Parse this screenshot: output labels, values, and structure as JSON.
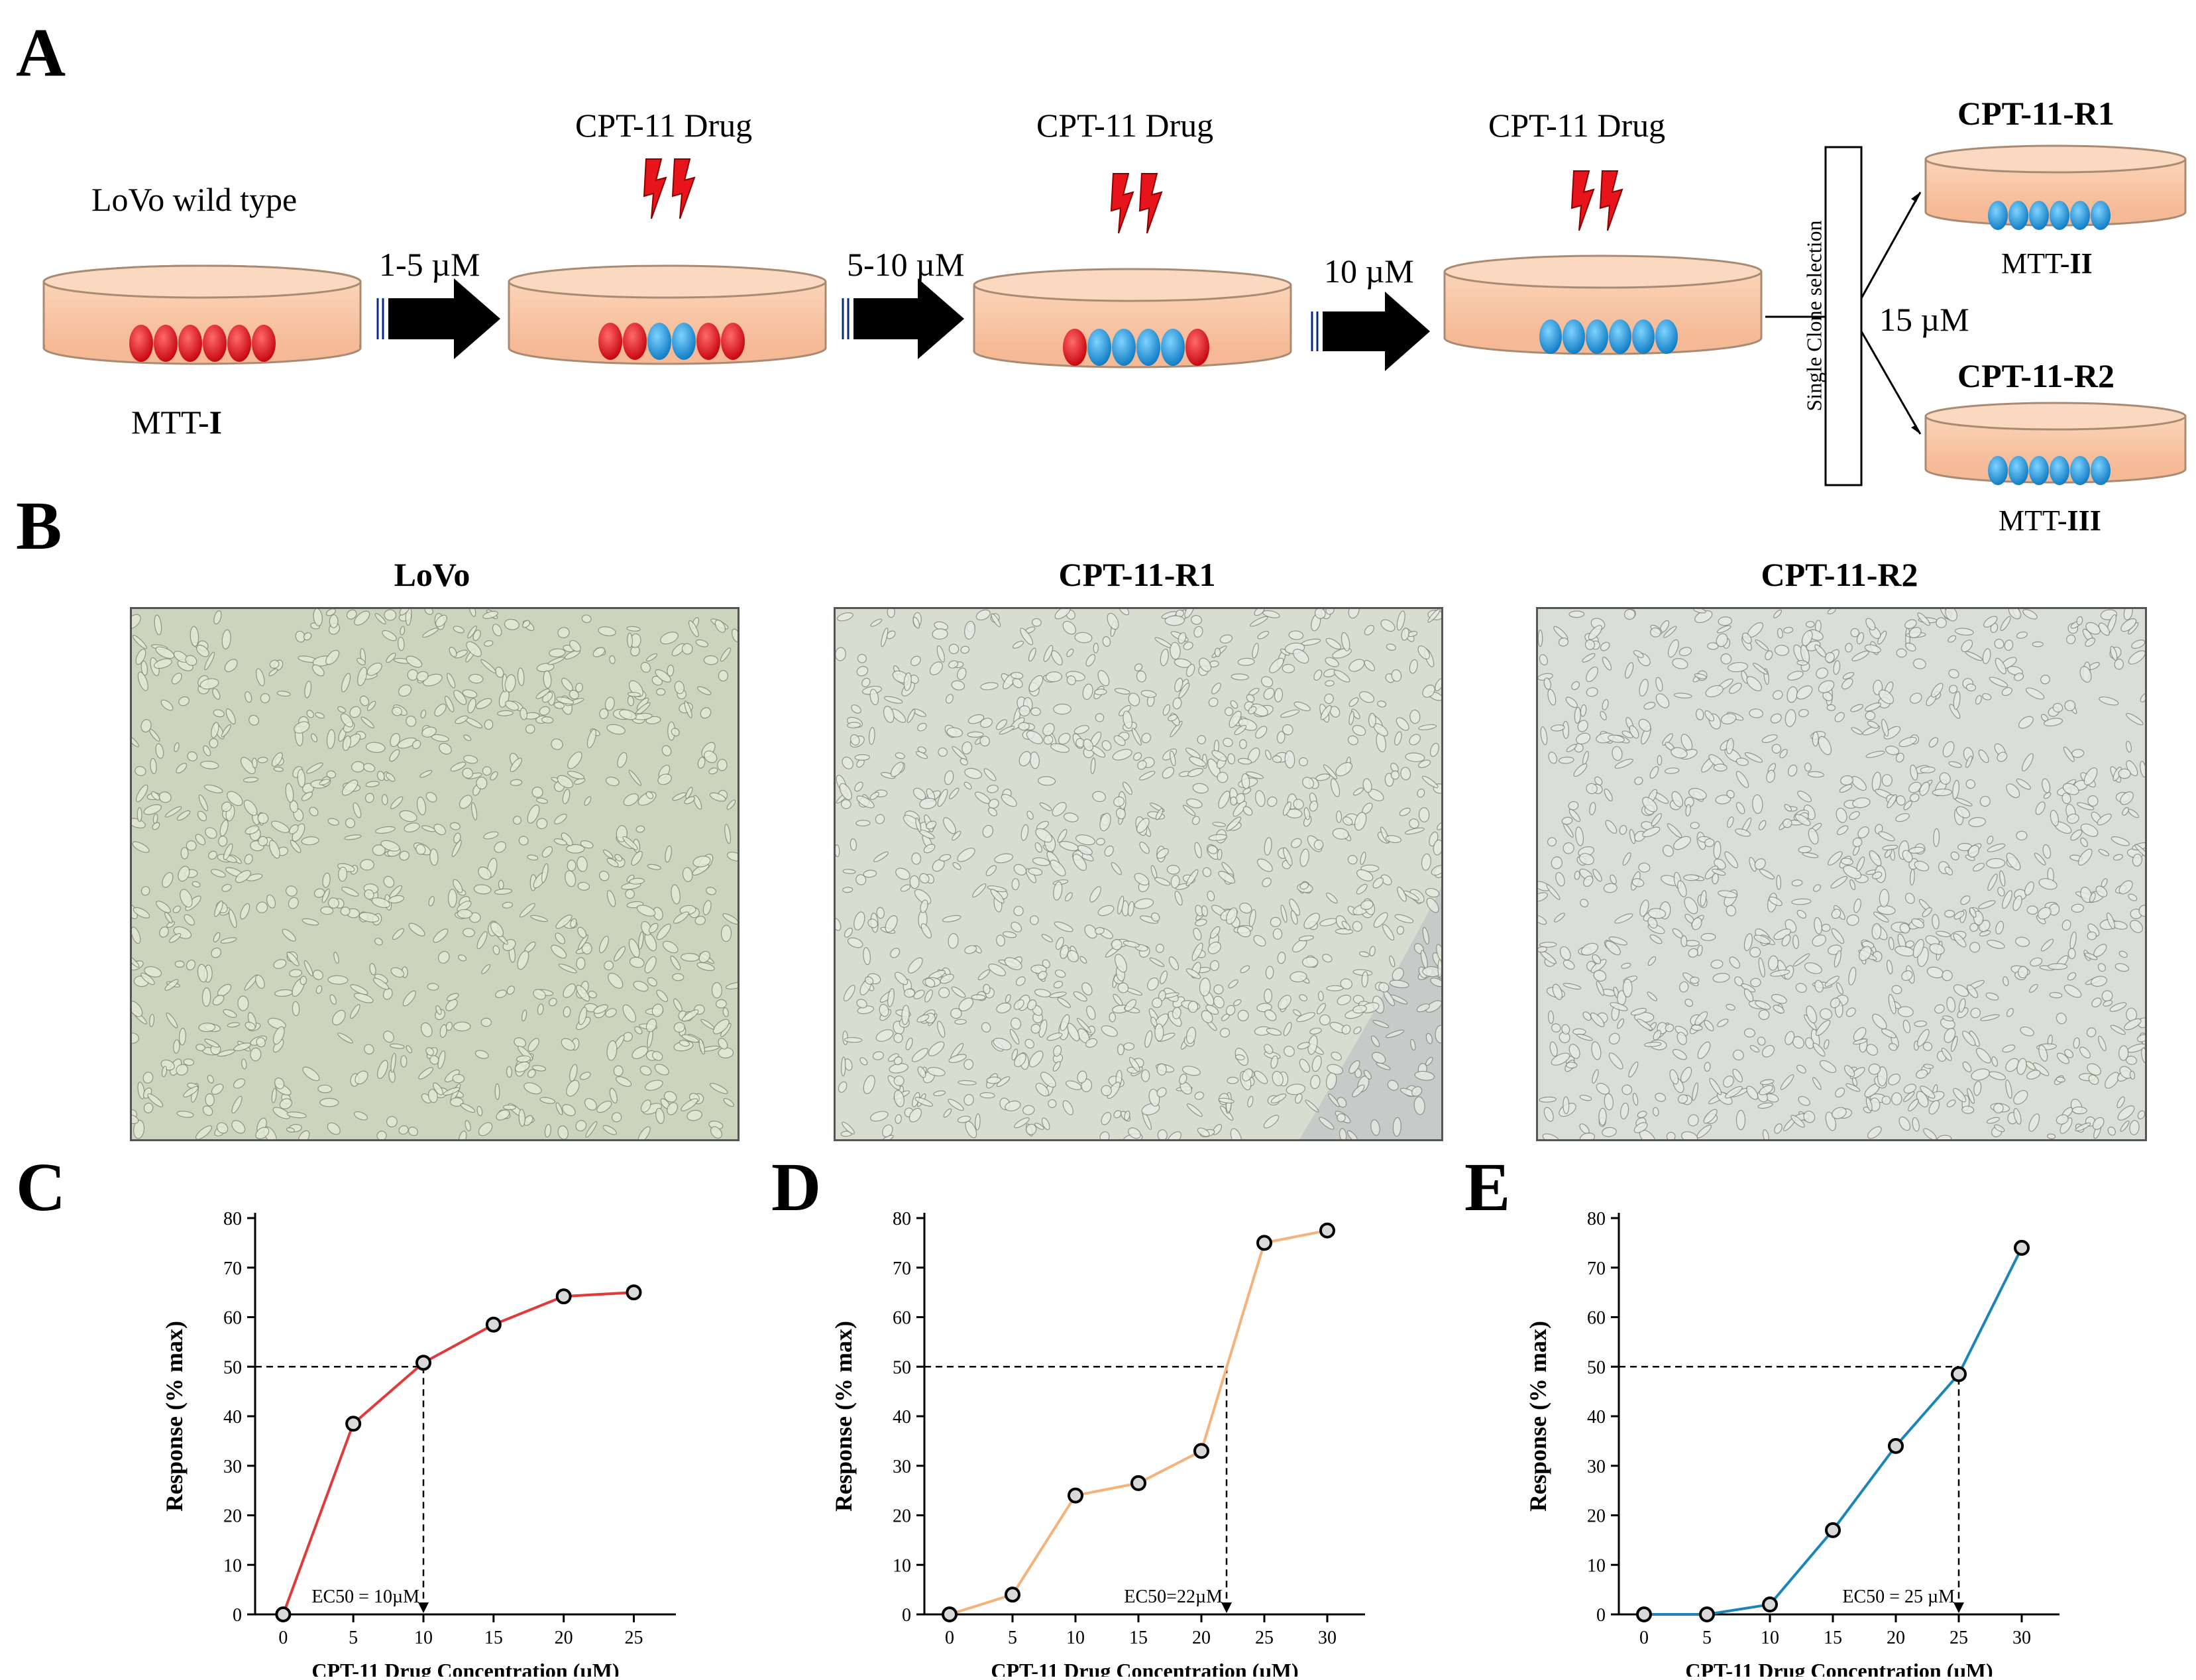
{
  "panels": {
    "a": "A",
    "b": "B",
    "c": "C",
    "d": "D",
    "e": "E"
  },
  "panelA": {
    "lovo_label": "LoVo wild type",
    "mtt1_prefix": "MTT-",
    "mtt1_roman": "I",
    "drug1": "CPT-11 Drug",
    "drug2": "CPT-11 Drug",
    "drug3": "CPT-11 Drug",
    "arrow1": "1-5 µM",
    "arrow2": "5-10 µM",
    "arrow3": "10 µM",
    "selection": "Single Clone selection",
    "branch_conc": "15 µM",
    "r1_title": "CPT-11-R1",
    "r2_title": "CPT-11-R2",
    "mtt2_prefix": "MTT-",
    "mtt2_roman": "II",
    "mtt3_prefix": "MTT-",
    "mtt3_roman": "III",
    "colors": {
      "dish": "#f9c9a8",
      "dish_edge": "#a98b74",
      "wild_cell": "#e8141c",
      "resistant_cell": "#1f9fe0",
      "bolt": "#e8141c",
      "arrow": "#000000"
    }
  },
  "panelB": {
    "titles": [
      "LoVo",
      "CPT-11-R1",
      "CPT-11-R2"
    ]
  },
  "chart_data": [
    {
      "type": "line",
      "panel": "C",
      "x": [
        0,
        5,
        10,
        15,
        20,
        25
      ],
      "y": [
        0,
        38.5,
        50.8,
        58.5,
        64.2,
        65
      ],
      "xticks": [
        0,
        5,
        10,
        15,
        20,
        25
      ],
      "yticks": [
        0,
        10,
        20,
        30,
        40,
        50,
        60,
        70,
        80
      ],
      "ylim": [
        0,
        80
      ],
      "xlim": [
        -2,
        28
      ],
      "xlabel": "CPT-11 Drug Concentration (µM)",
      "ylabel": "Response (% max)",
      "annotation": "EC50 = 10µM",
      "ec50_x": 10,
      "color": "#e03a3a"
    },
    {
      "type": "line",
      "panel": "D",
      "x": [
        0,
        5,
        10,
        15,
        20,
        25,
        30
      ],
      "y": [
        0,
        4,
        24,
        26.5,
        33,
        75,
        77.5
      ],
      "xticks": [
        0,
        5,
        10,
        15,
        20,
        25,
        30
      ],
      "yticks": [
        0,
        10,
        20,
        30,
        40,
        50,
        60,
        70,
        80
      ],
      "ylim": [
        0,
        80
      ],
      "xlim": [
        -2,
        33
      ],
      "xlabel": "CPT-11 Drug Concentration (µM)",
      "ylabel": "Response (% max)",
      "annotation": "EC50=22µM",
      "ec50_x": 22,
      "color": "#f5b27a"
    },
    {
      "type": "line",
      "panel": "E",
      "x": [
        0,
        5,
        10,
        15,
        20,
        25,
        30
      ],
      "y": [
        0,
        0,
        2,
        17,
        34,
        48.5,
        74
      ],
      "xticks": [
        0,
        5,
        10,
        15,
        20,
        25,
        30
      ],
      "yticks": [
        0,
        10,
        20,
        30,
        40,
        50,
        60,
        70,
        80
      ],
      "ylim": [
        0,
        80
      ],
      "xlim": [
        -2,
        33
      ],
      "xlabel": "CPT-11 Drug Concentration (µM)",
      "ylabel": "Response (% max)",
      "annotation": "EC50 = 25 µM",
      "ec50_x": 25,
      "color": "#1a86b8"
    }
  ]
}
